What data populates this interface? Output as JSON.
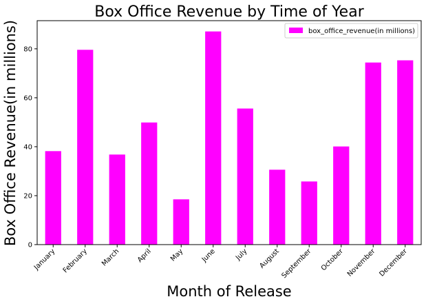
{
  "chart_data": {
    "type": "bar",
    "title": "Box Office Revenue by Time of Year",
    "xlabel": "Month of Release",
    "ylabel": "Box Office Revenue(in millions)",
    "categories": [
      "January",
      "February",
      "March",
      "April",
      "May",
      "June",
      "July",
      "August",
      "September",
      "October",
      "November",
      "December"
    ],
    "series": [
      {
        "name": "box_office_revenue(in millions)",
        "values": [
          38.2,
          79.6,
          36.8,
          49.9,
          18.5,
          87.1,
          55.6,
          30.6,
          25.8,
          40.1,
          74.4,
          75.3
        ],
        "color": "#ff00ff"
      }
    ],
    "ylim": [
      0,
      91.5
    ],
    "yticks": [
      0,
      20,
      40,
      60,
      80
    ],
    "grid": false,
    "legend_position": "top-right"
  }
}
